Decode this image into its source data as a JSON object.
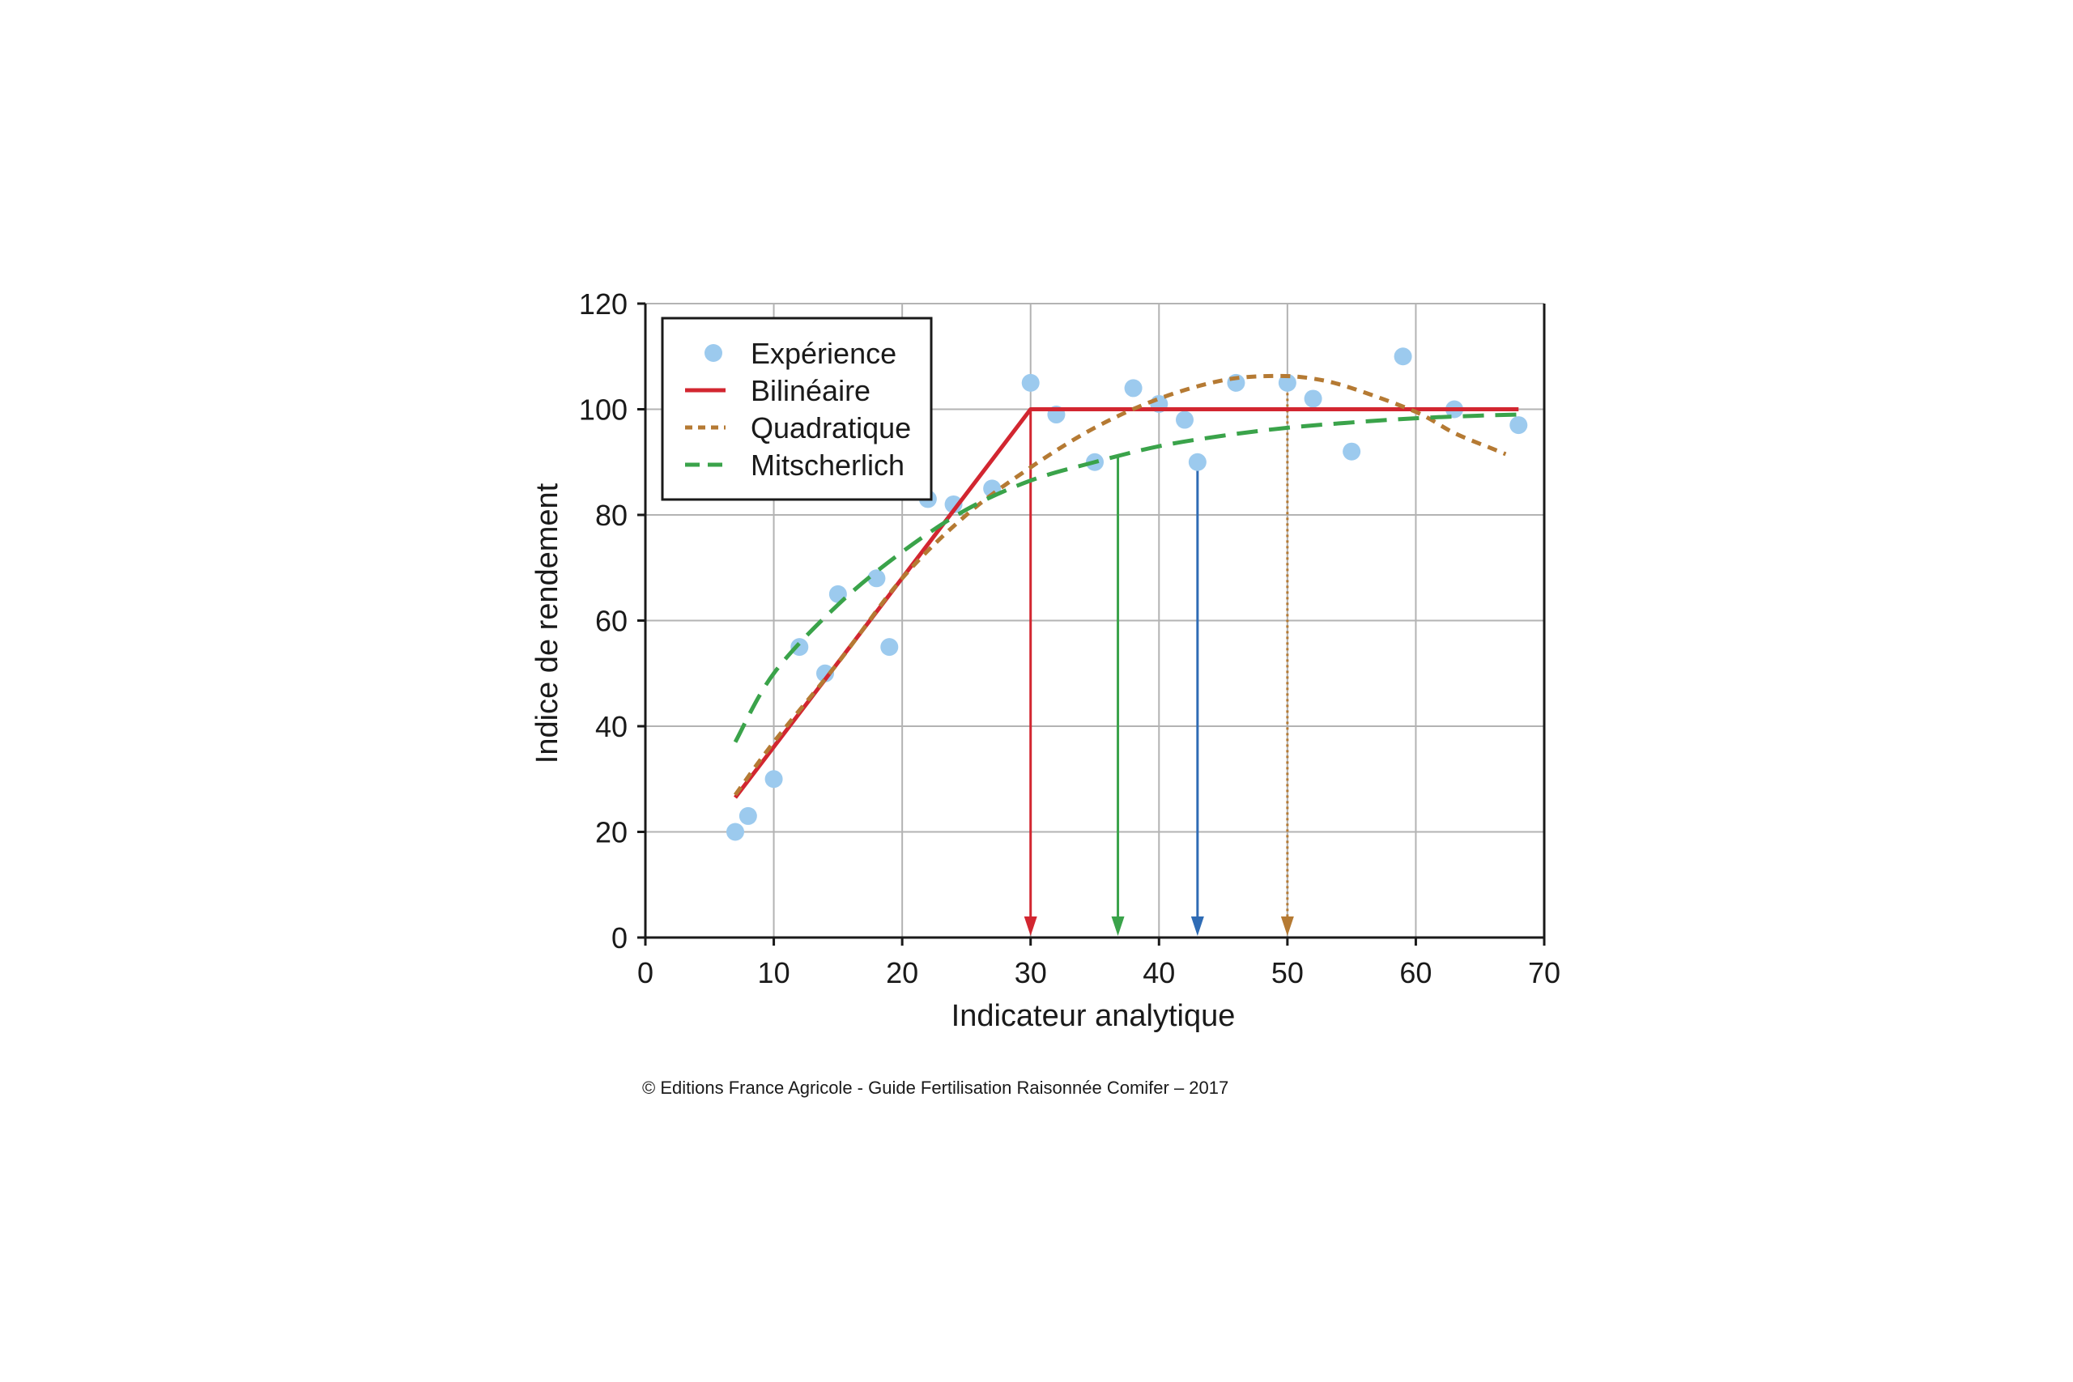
{
  "chart_data": {
    "type": "scatter",
    "title": "",
    "xlabel": "Indicateur analytique",
    "ylabel": "Indice de rendement",
    "xlim": [
      0,
      70
    ],
    "ylim": [
      0,
      120
    ],
    "x_ticks": [
      0,
      10,
      20,
      30,
      40,
      50,
      60,
      70
    ],
    "y_ticks": [
      0,
      20,
      40,
      60,
      80,
      100,
      120
    ],
    "grid": true,
    "legend_position": "top-left",
    "series": [
      {
        "name": "Expérience",
        "kind": "points",
        "color": "#9ccaee",
        "points": [
          [
            7,
            20
          ],
          [
            8,
            23
          ],
          [
            10,
            30
          ],
          [
            12,
            55
          ],
          [
            14,
            50
          ],
          [
            15,
            65
          ],
          [
            18,
            68
          ],
          [
            19,
            55
          ],
          [
            22,
            83
          ],
          [
            24,
            82
          ],
          [
            27,
            85
          ],
          [
            30,
            105
          ],
          [
            32,
            99
          ],
          [
            35,
            90
          ],
          [
            38,
            104
          ],
          [
            40,
            101
          ],
          [
            42,
            98
          ],
          [
            43,
            90
          ],
          [
            46,
            105
          ],
          [
            50,
            105
          ],
          [
            52,
            102
          ],
          [
            55,
            92
          ],
          [
            59,
            110
          ],
          [
            63,
            100
          ],
          [
            68,
            97
          ]
        ]
      },
      {
        "name": "Bilinéaire",
        "kind": "line",
        "dash": "solid",
        "color": "#d22630",
        "points": [
          [
            7,
            26.5
          ],
          [
            30,
            100
          ],
          [
            68,
            100
          ]
        ]
      },
      {
        "name": "Quadratique",
        "kind": "curve",
        "dash": "short",
        "color": "#b57a33",
        "points": [
          [
            7,
            27
          ],
          [
            10,
            37
          ],
          [
            15,
            52
          ],
          [
            20,
            68
          ],
          [
            25,
            80
          ],
          [
            30,
            89
          ],
          [
            35,
            96.5
          ],
          [
            40,
            102
          ],
          [
            45,
            105.5
          ],
          [
            49,
            106.3
          ],
          [
            52,
            105.8
          ],
          [
            55,
            104
          ],
          [
            60,
            99.5
          ],
          [
            63,
            95.5
          ],
          [
            66,
            92.5
          ],
          [
            67,
            91.5
          ]
        ]
      },
      {
        "name": "Mitscherlich",
        "kind": "curve",
        "dash": "long",
        "color": "#3aa34a",
        "points": [
          [
            7,
            37
          ],
          [
            10,
            50
          ],
          [
            15,
            63
          ],
          [
            20,
            73
          ],
          [
            25,
            81
          ],
          [
            30,
            86.5
          ],
          [
            35,
            90
          ],
          [
            40,
            93
          ],
          [
            45,
            95
          ],
          [
            50,
            96.5
          ],
          [
            55,
            97.5
          ],
          [
            60,
            98.3
          ],
          [
            65,
            98.8
          ],
          [
            68,
            99
          ]
        ]
      }
    ],
    "markers": [
      {
        "x": 30,
        "y_from": 100,
        "color": "#d22630",
        "style": "solid"
      },
      {
        "x": 36.8,
        "y_from": 91.5,
        "color": "#3aa34a",
        "style": "solid"
      },
      {
        "x": 43,
        "y_from": 90,
        "color": "#2f6cb5",
        "style": "solid"
      },
      {
        "x": 50,
        "y_from": 106.3,
        "color": "#b57a33",
        "style": "dotted"
      }
    ]
  },
  "credit": "© Editions France Agricole - Guide Fertilisation Raisonnée Comifer – 2017"
}
